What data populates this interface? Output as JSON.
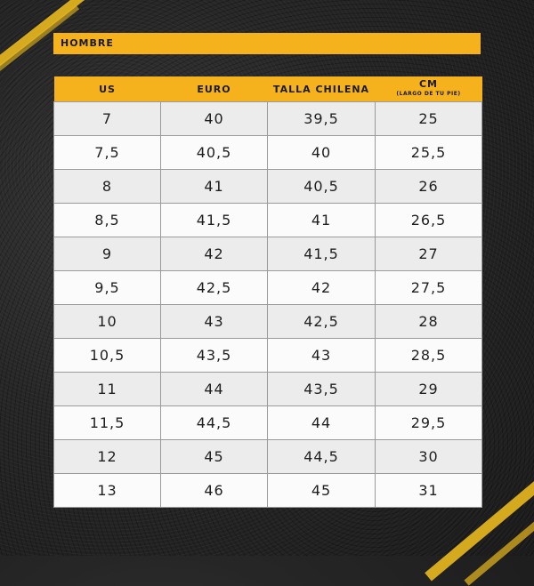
{
  "title": "HOMBRE",
  "headers": {
    "us": "US",
    "euro": "EURO",
    "chile": "TALLA CHILENA",
    "cm": "CM",
    "cm_sub": "(LARGO DE TU PIE)"
  },
  "rows": [
    [
      "7",
      "40",
      "39,5",
      "25"
    ],
    [
      "7,5",
      "40,5",
      "40",
      "25,5"
    ],
    [
      "8",
      "41",
      "40,5",
      "26"
    ],
    [
      "8,5",
      "41,5",
      "41",
      "26,5"
    ],
    [
      "9",
      "42",
      "41,5",
      "27"
    ],
    [
      "9,5",
      "42,5",
      "42",
      "27,5"
    ],
    [
      "10",
      "43",
      "42,5",
      "28"
    ],
    [
      "10,5",
      "43,5",
      "43",
      "28,5"
    ],
    [
      "11",
      "44",
      "43,5",
      "29"
    ],
    [
      "11,5",
      "44,5",
      "44",
      "29,5"
    ],
    [
      "12",
      "45",
      "44,5",
      "30"
    ],
    [
      "13",
      "46",
      "45",
      "31"
    ]
  ],
  "colors": {
    "accent": "#f5b21c",
    "row_odd": "#ececec",
    "row_even": "#fbfbfb",
    "background": "#262626"
  }
}
